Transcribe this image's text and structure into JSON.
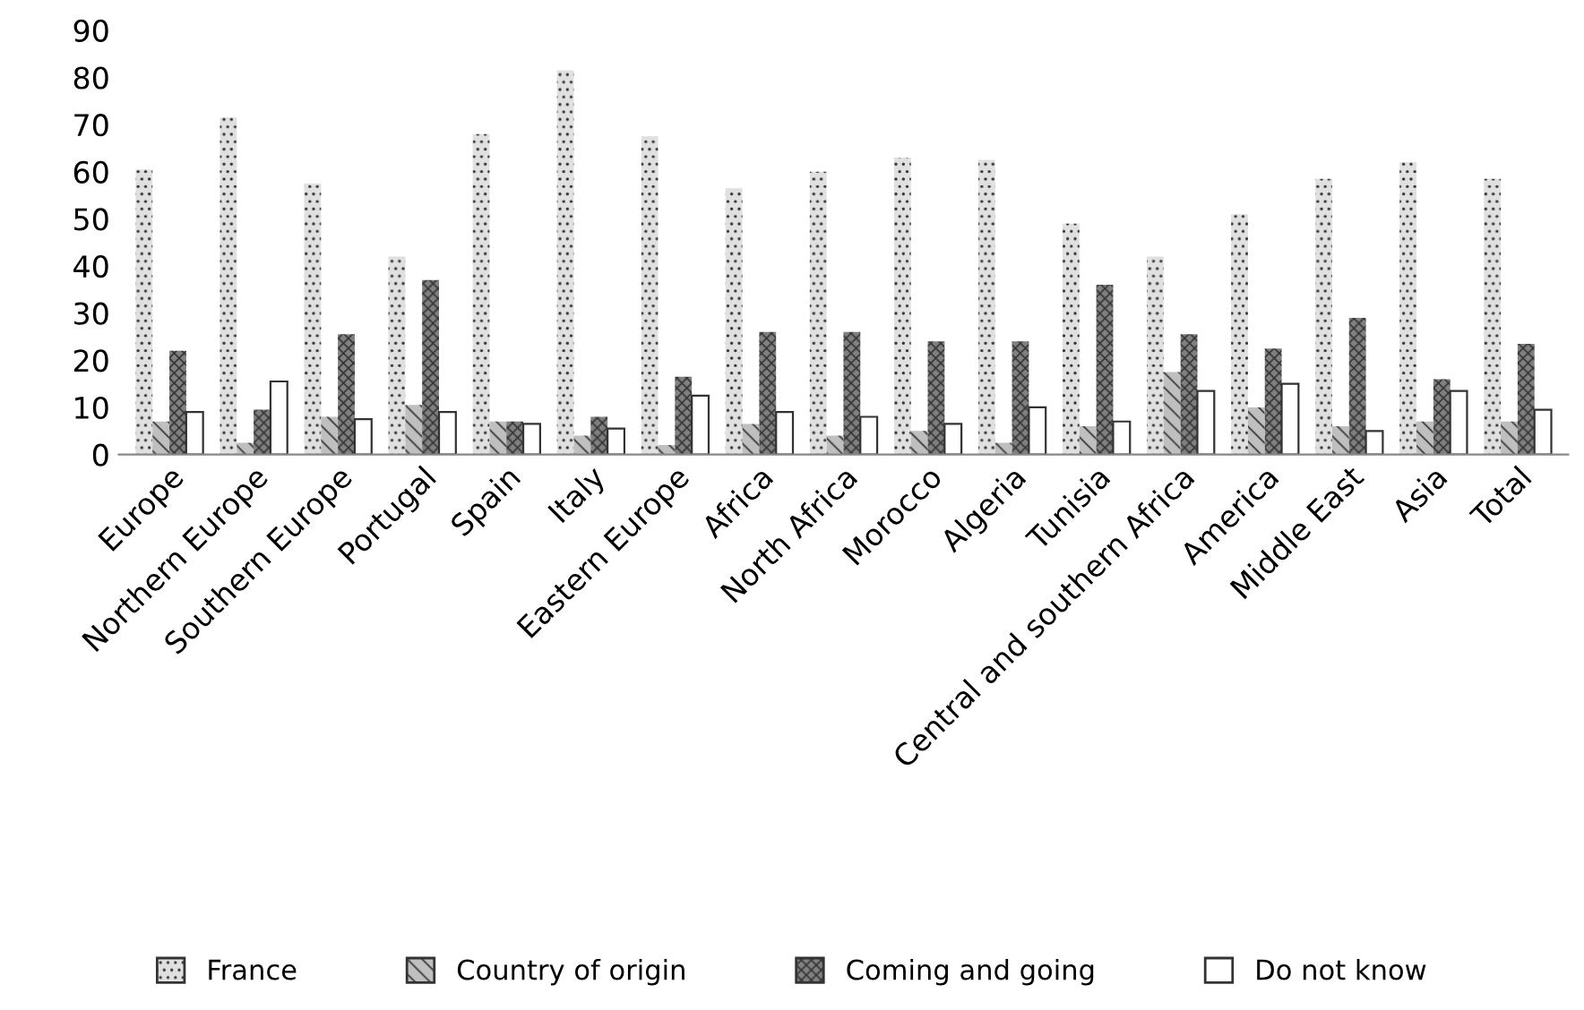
{
  "chart_data": {
    "type": "bar",
    "categories": [
      "Europe",
      "Northern Europe",
      "Southern Europe",
      "Portugal",
      "Spain",
      "Italy",
      "Eastern Europe",
      "Africa",
      "North Africa",
      "Morocco",
      "Algeria",
      "Tunisia",
      "Central and southern Africa",
      "America",
      "Middle East",
      "Asia",
      "Total"
    ],
    "series": [
      {
        "name": "France",
        "color": "#e0e0e0",
        "values": [
          60.5,
          71.5,
          57.5,
          42,
          68,
          81.5,
          67.5,
          56.5,
          60,
          63,
          62.5,
          49,
          42,
          51,
          58.5,
          62,
          58.5
        ]
      },
      {
        "name": "Country of origin",
        "color": "#bfbfbf",
        "values": [
          7,
          2.5,
          8,
          10.5,
          7,
          4,
          2,
          6.5,
          4,
          5,
          2.5,
          6,
          17.5,
          10,
          6,
          7,
          7
        ]
      },
      {
        "name": "Coming and going",
        "color": "#808080",
        "values": [
          22,
          9.5,
          25.5,
          37,
          7,
          8,
          16.5,
          26,
          26,
          24,
          24,
          36,
          25.5,
          22.5,
          29,
          16,
          23.5
        ]
      },
      {
        "name": "Do not know",
        "color": "#ffffff",
        "values": [
          9,
          15.5,
          7.5,
          9,
          6.5,
          5.5,
          12.5,
          9,
          8,
          6.5,
          10,
          7,
          13.5,
          15,
          5,
          13.5,
          9.5
        ]
      }
    ],
    "ylim": [
      0,
      90
    ],
    "yticks": [
      0,
      10,
      20,
      30,
      40,
      50,
      60,
      70,
      80,
      90
    ],
    "grid": false,
    "legend": "bottom"
  }
}
